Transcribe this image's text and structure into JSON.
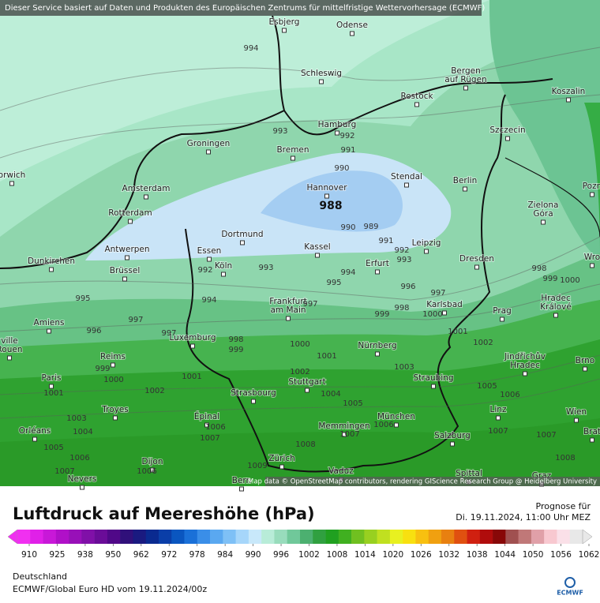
{
  "header": {
    "attribution": "Dieser Service basiert auf Daten und Produkten des Europäischen Zentrums für mittelfristige Wettervorhersage (ECMWF)"
  },
  "map": {
    "cities": [
      [
        "Esbjerg"
      ],
      [
        "Odense"
      ],
      [
        "Schleswig"
      ],
      [
        "Bergen",
        "auf Rügen"
      ],
      [
        "Rostock"
      ],
      [
        "Koszalin"
      ],
      [
        "Hamburg"
      ],
      [
        "Szczecin"
      ],
      [
        "Groningen"
      ],
      [
        "Bremen"
      ],
      [
        "orwich"
      ],
      [
        "Amsterdam"
      ],
      [
        "Stendal"
      ],
      [
        "Berlin"
      ],
      [
        "Pozn"
      ],
      [
        "Hannover"
      ],
      [
        "Rotterdam"
      ],
      [
        "Zielona",
        "Góra"
      ],
      [
        "Dortmund"
      ],
      [
        "Antwerpen"
      ],
      [
        "Essen"
      ],
      [
        "Kassel"
      ],
      [
        "Leipzig"
      ],
      [
        "Dunkirchen"
      ],
      [
        "Erfurt"
      ],
      [
        "Dresden"
      ],
      [
        "Brüssel"
      ],
      [
        "Köln"
      ],
      [
        "Wro"
      ],
      [
        "Frankfurt",
        "am Main"
      ],
      [
        "Karlsbad"
      ],
      [
        "Hradec",
        "Králové"
      ],
      [
        "Prag"
      ],
      [
        "Amiens"
      ],
      [
        "ville",
        "Rouen"
      ],
      [
        "Luxemburg"
      ],
      [
        "Nürnberg"
      ],
      [
        "Jindřichův",
        "Hradec"
      ],
      [
        "Brno"
      ],
      [
        "Reims"
      ],
      [
        "Paris"
      ],
      [
        "Straubing"
      ],
      [
        "Stuttgart"
      ],
      [
        "Strasbourg"
      ],
      [
        "Troyes"
      ],
      [
        "Linz"
      ],
      [
        "Wien"
      ],
      [
        "Épinal"
      ],
      [
        "München"
      ],
      [
        "Orléans"
      ],
      [
        "Memmingen"
      ],
      [
        "Salzburg"
      ],
      [
        "Zürich"
      ],
      [
        "Dijon"
      ],
      [
        "Vaduz"
      ],
      [
        "Nevers"
      ],
      [
        "Spittal"
      ],
      [
        "Bern"
      ],
      [
        "Graz"
      ],
      [
        "Brat"
      ]
    ],
    "isobar_labels": [
      994,
      993,
      992,
      991,
      990,
      990,
      989,
      991,
      992,
      993,
      992,
      993,
      994,
      995,
      996,
      997,
      998,
      999,
      1000,
      995,
      996,
      997,
      997,
      994,
      997,
      998,
      998,
      999,
      1000,
      999,
      1000,
      1001,
      1001,
      1002,
      1003,
      1001,
      1002,
      1002,
      1000,
      999,
      1001,
      1004,
      1005,
      1005,
      1006,
      1003,
      1004,
      1006,
      1007,
      1005,
      1006,
      1007,
      1006,
      1006,
      1007,
      1007,
      1007,
      1008,
      1008,
      1009
    ],
    "low_label": 988,
    "credit": "Map data © OpenStreetMap contributors, rendering GIScience Research Group @ Heidelberg University"
  },
  "legend": {
    "title": "Luftdruck auf Meereshöhe (hPa)",
    "forecast_label": "Prognose für",
    "forecast_time": "Di. 19.11.2024, 11:00 Uhr MEZ",
    "ticks": [
      910,
      925,
      938,
      950,
      962,
      972,
      978,
      984,
      990,
      996,
      1002,
      1008,
      1014,
      1020,
      1026,
      1032,
      1038,
      1044,
      1050,
      1056,
      1062
    ],
    "region": "Deutschland",
    "model": "ECMWF/Global Euro HD vom  19.11.2024/00z",
    "logo": "ECMWF"
  }
}
